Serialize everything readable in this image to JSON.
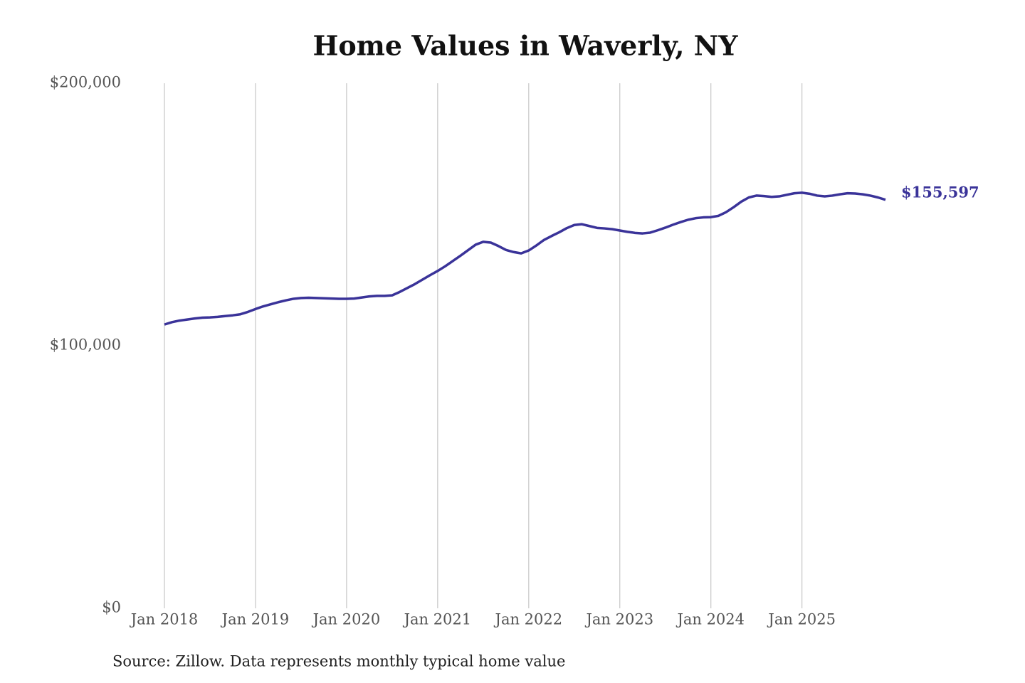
{
  "chart_data": {
    "type": "line",
    "title": "Home Values in Waverly, NY",
    "source": "Source: Zillow. Data represents monthly typical home value",
    "x": [
      "2018-01",
      "2018-02",
      "2018-03",
      "2018-04",
      "2018-05",
      "2018-06",
      "2018-07",
      "2018-08",
      "2018-09",
      "2018-10",
      "2018-11",
      "2018-12",
      "2019-01",
      "2019-02",
      "2019-03",
      "2019-04",
      "2019-05",
      "2019-06",
      "2019-07",
      "2019-08",
      "2019-09",
      "2019-10",
      "2019-11",
      "2019-12",
      "2020-01",
      "2020-02",
      "2020-03",
      "2020-04",
      "2020-05",
      "2020-06",
      "2020-07",
      "2020-08",
      "2020-09",
      "2020-10",
      "2020-11",
      "2020-12",
      "2021-01",
      "2021-02",
      "2021-03",
      "2021-04",
      "2021-05",
      "2021-06",
      "2021-07",
      "2021-08",
      "2021-09",
      "2021-10",
      "2021-11",
      "2021-12",
      "2022-01",
      "2022-02",
      "2022-03",
      "2022-04",
      "2022-05",
      "2022-06",
      "2022-07",
      "2022-08",
      "2022-09",
      "2022-10",
      "2022-11",
      "2022-12",
      "2023-01",
      "2023-02",
      "2023-03",
      "2023-04",
      "2023-05",
      "2023-06",
      "2023-07",
      "2023-08",
      "2023-09",
      "2023-10",
      "2023-11",
      "2023-12",
      "2024-01",
      "2024-02",
      "2024-03",
      "2024-04",
      "2024-05",
      "2024-06",
      "2024-07",
      "2024-08",
      "2024-09",
      "2024-10",
      "2024-11",
      "2024-12",
      "2025-01",
      "2025-02",
      "2025-03",
      "2025-04",
      "2025-05",
      "2025-06",
      "2025-07",
      "2025-08",
      "2025-09",
      "2025-10",
      "2025-11",
      "2025-12"
    ],
    "series": [
      {
        "color": "#3a3399",
        "values": [
          108100,
          109000,
          109600,
          110000,
          110400,
          110700,
          110800,
          111000,
          111300,
          111600,
          112000,
          112900,
          114000,
          115000,
          115800,
          116600,
          117300,
          117900,
          118200,
          118300,
          118200,
          118100,
          118000,
          117900,
          117900,
          118000,
          118400,
          118800,
          119000,
          119000,
          119200,
          120500,
          122000,
          123500,
          125200,
          126900,
          128500,
          130300,
          132300,
          134300,
          136400,
          138500,
          139600,
          139300,
          138000,
          136500,
          135700,
          135200,
          136300,
          138200,
          140300,
          141800,
          143200,
          144800,
          146000,
          146300,
          145600,
          144900,
          144700,
          144400,
          143900,
          143400,
          143000,
          142800,
          143100,
          144000,
          145000,
          146100,
          147100,
          148000,
          148600,
          148900,
          149000,
          149500,
          150900,
          152800,
          154900,
          156500,
          157200,
          157000,
          156700,
          156900,
          157500,
          158100,
          158300,
          157900,
          157200,
          156900,
          157200,
          157700,
          158100,
          158000,
          157700,
          157200,
          156500,
          155597
        ],
        "value_labels": [
          null,
          null,
          null,
          null,
          null,
          null,
          null,
          null,
          null,
          null,
          null,
          null,
          null,
          null,
          null,
          null,
          null,
          null,
          null,
          null,
          null,
          null,
          null,
          null,
          null,
          null,
          null,
          null,
          null,
          null,
          null,
          null,
          null,
          null,
          null,
          null,
          null,
          null,
          null,
          null,
          null,
          null,
          null,
          null,
          null,
          null,
          null,
          null,
          null,
          null,
          null,
          null,
          null,
          null,
          null,
          null,
          null,
          null,
          null,
          null,
          null,
          null,
          null,
          null,
          null,
          null,
          null,
          null,
          null,
          null,
          null,
          null,
          null,
          null,
          null,
          null,
          null,
          null,
          null,
          null,
          null,
          null,
          null,
          null,
          null,
          null,
          null,
          null,
          null,
          null,
          null,
          null,
          null,
          null,
          null,
          "$155,597"
        ]
      }
    ],
    "xlim": [
      "2018-01",
      "2025-12"
    ],
    "xticks": [
      {
        "value": "2018-01",
        "label": "Jan 2018"
      },
      {
        "value": "2019-01",
        "label": "Jan 2019"
      },
      {
        "value": "2020-01",
        "label": "Jan 2020"
      },
      {
        "value": "2021-01",
        "label": "Jan 2021"
      },
      {
        "value": "2022-01",
        "label": "Jan 2022"
      },
      {
        "value": "2023-01",
        "label": "Jan 2023"
      },
      {
        "value": "2024-01",
        "label": "Jan 2024"
      },
      {
        "value": "2025-01",
        "label": "Jan 2025"
      }
    ],
    "ylim": [
      0,
      200000
    ],
    "yticks": [
      {
        "value": 0,
        "label": "$0"
      },
      {
        "value": 100000,
        "label": "$100,000"
      },
      {
        "value": 200000,
        "label": "$200,000"
      }
    ],
    "grid": "x"
  }
}
